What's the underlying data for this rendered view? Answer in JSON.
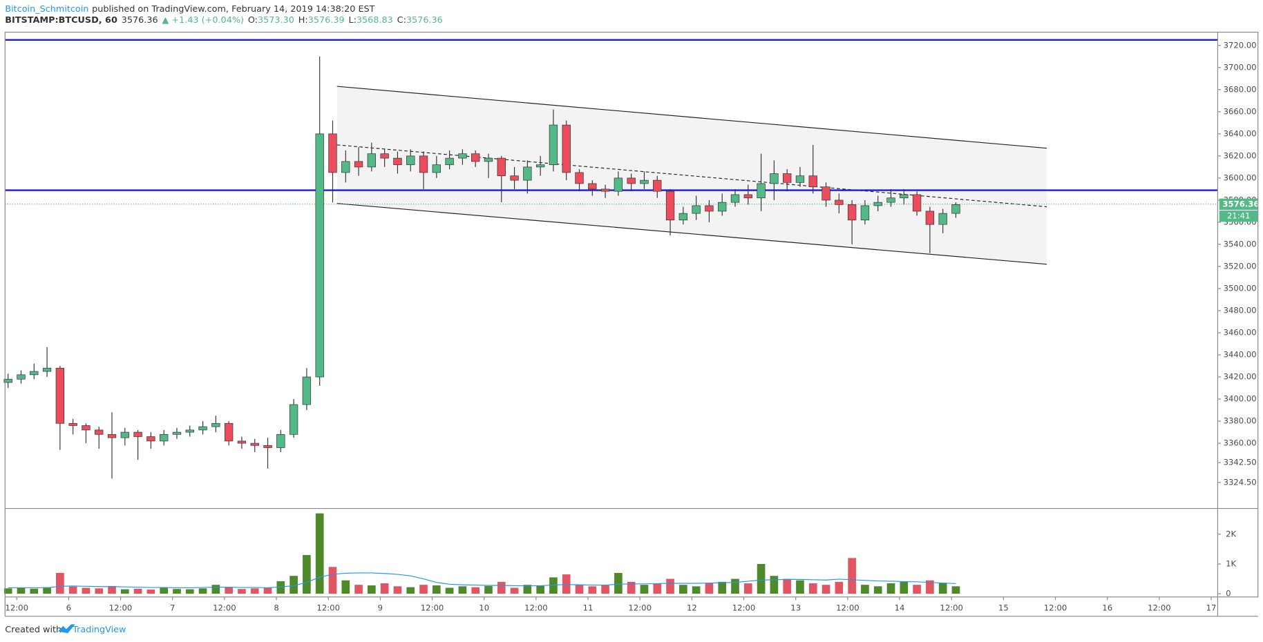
{
  "header": {
    "author": "Bitcoin_Schmitcoin",
    "published": "published on TradingView.com, February 14, 2019 14:38:20 EST",
    "symbol": "BITSTAMP:BTCUSD, 60",
    "last": "3576.36",
    "change": "▲ +1.43 (+0.04%)",
    "ohlc": [
      {
        "label": "O:",
        "value": "3573.30"
      },
      {
        "label": "H:",
        "value": "3576.39"
      },
      {
        "label": "L:",
        "value": "3568.83"
      },
      {
        "label": "C:",
        "value": "3576.36"
      }
    ]
  },
  "chart_data": [
    {
      "type": "candlestick",
      "up_color": "#53b987",
      "down_color": "#eb4d5c",
      "x": [
        -14,
        -11,
        -8,
        -5,
        -2,
        1,
        4,
        7,
        10,
        13,
        16,
        19,
        22,
        25,
        28,
        31,
        34,
        37,
        40,
        43,
        46,
        49,
        52,
        55,
        58,
        61,
        64,
        67,
        70,
        73,
        76,
        79,
        82,
        85,
        88,
        91,
        94,
        97,
        100,
        103,
        106,
        109,
        112,
        115,
        118,
        121,
        124,
        127,
        130,
        133,
        136,
        139,
        142,
        145,
        148,
        151,
        154,
        157,
        160,
        163,
        166,
        169,
        172,
        175,
        178,
        181,
        184,
        187,
        190,
        193,
        196,
        199,
        202,
        205
      ],
      "open": [
        3415,
        3418,
        3422,
        3425,
        3428,
        3378,
        3376,
        3372,
        3368,
        3365,
        3370,
        3366,
        3362,
        3368,
        3370,
        3372,
        3375,
        3378,
        3362,
        3360,
        3358,
        3356,
        3368,
        3395,
        3420,
        3640,
        3605,
        3615,
        3610,
        3622,
        3618,
        3612,
        3620,
        3605,
        3612,
        3618,
        3622,
        3615,
        3618,
        3602,
        3598,
        3610,
        3612,
        3648,
        3605,
        3595,
        3590,
        3588,
        3600,
        3595,
        3598,
        3588,
        3562,
        3568,
        3575,
        3570,
        3578,
        3585,
        3582,
        3595,
        3604,
        3596,
        3602,
        3592,
        3580,
        3576,
        3562,
        3575,
        3578,
        3582,
        3585,
        3570,
        3558,
        3568
      ],
      "high": [
        3423,
        3426,
        3432,
        3447,
        3430,
        3382,
        3378,
        3375,
        3388,
        3374,
        3372,
        3370,
        3372,
        3374,
        3376,
        3380,
        3385,
        3380,
        3366,
        3364,
        3365,
        3372,
        3400,
        3428,
        3710,
        3652,
        3625,
        3628,
        3632,
        3626,
        3624,
        3626,
        3624,
        3620,
        3625,
        3626,
        3625,
        3622,
        3620,
        3610,
        3616,
        3620,
        3662,
        3652,
        3608,
        3598,
        3594,
        3606,
        3604,
        3606,
        3602,
        3590,
        3574,
        3584,
        3580,
        3586,
        3590,
        3594,
        3622,
        3616,
        3608,
        3610,
        3630,
        3596,
        3586,
        3580,
        3580,
        3584,
        3590,
        3590,
        3588,
        3574,
        3572,
        3578
      ],
      "low": [
        3410,
        3414,
        3418,
        3420,
        3354,
        3368,
        3360,
        3355,
        3328,
        3358,
        3345,
        3355,
        3358,
        3364,
        3366,
        3368,
        3370,
        3358,
        3355,
        3352,
        3337,
        3352,
        3365,
        3390,
        3412,
        3578,
        3596,
        3602,
        3606,
        3610,
        3604,
        3606,
        3590,
        3600,
        3608,
        3612,
        3610,
        3600,
        3578,
        3590,
        3586,
        3602,
        3606,
        3598,
        3588,
        3584,
        3582,
        3584,
        3588,
        3590,
        3582,
        3548,
        3558,
        3562,
        3560,
        3566,
        3574,
        3576,
        3570,
        3580,
        3588,
        3592,
        3586,
        3574,
        3568,
        3540,
        3558,
        3570,
        3574,
        3576,
        3566,
        3532,
        3550,
        3564
      ],
      "close": [
        3418,
        3422,
        3425,
        3428,
        3378,
        3376,
        3372,
        3368,
        3365,
        3370,
        3366,
        3362,
        3368,
        3370,
        3372,
        3375,
        3378,
        3362,
        3360,
        3358,
        3356,
        3368,
        3395,
        3420,
        3640,
        3605,
        3615,
        3610,
        3622,
        3618,
        3612,
        3620,
        3605,
        3612,
        3618,
        3622,
        3615,
        3618,
        3602,
        3598,
        3610,
        3612,
        3648,
        3605,
        3595,
        3590,
        3588,
        3600,
        3595,
        3598,
        3588,
        3562,
        3568,
        3575,
        3570,
        3578,
        3585,
        3582,
        3595,
        3604,
        3596,
        3602,
        3592,
        3580,
        3576,
        3562,
        3575,
        3578,
        3582,
        3585,
        3570,
        3558,
        3568,
        3576
      ],
      "xlim": [
        -14.7,
        265.5
      ],
      "xticks": [
        {
          "value": -12,
          "label": "12:00"
        },
        {
          "value": 0,
          "label": "6"
        },
        {
          "value": 12,
          "label": "12:00"
        },
        {
          "value": 24,
          "label": "7"
        },
        {
          "value": 36,
          "label": "12:00"
        },
        {
          "value": 48,
          "label": "8"
        },
        {
          "value": 60,
          "label": "12:00"
        },
        {
          "value": 72,
          "label": "9"
        },
        {
          "value": 84,
          "label": "12:00"
        },
        {
          "value": 96,
          "label": "10"
        },
        {
          "value": 108,
          "label": "12:00"
        },
        {
          "value": 120,
          "label": "11"
        },
        {
          "value": 132,
          "label": "12:00"
        },
        {
          "value": 144,
          "label": "12"
        },
        {
          "value": 156,
          "label": "12:00"
        },
        {
          "value": 168,
          "label": "13"
        },
        {
          "value": 180,
          "label": "12:00"
        },
        {
          "value": 192,
          "label": "14"
        },
        {
          "value": 204,
          "label": "12:00"
        },
        {
          "value": 216,
          "label": "15"
        },
        {
          "value": 228,
          "label": "12:00"
        },
        {
          "value": 240,
          "label": "16"
        },
        {
          "value": 252,
          "label": "12:00"
        },
        {
          "value": 264,
          "label": "17"
        }
      ],
      "ylim": [
        3301,
        3732
      ],
      "yticks": [
        {
          "value": 3720,
          "label": "3720.00"
        },
        {
          "value": 3700,
          "label": "3700.00"
        },
        {
          "value": 3680,
          "label": "3680.00"
        },
        {
          "value": 3660,
          "label": "3660.00"
        },
        {
          "value": 3640,
          "label": "3640.00"
        },
        {
          "value": 3620,
          "label": "3620.00"
        },
        {
          "value": 3600,
          "label": "3600.00"
        },
        {
          "value": 3580,
          "label": "3580.00"
        },
        {
          "value": 3560,
          "label": "3560.00"
        },
        {
          "value": 3540,
          "label": "3540.00"
        },
        {
          "value": 3520,
          "label": "3520.00"
        },
        {
          "value": 3500,
          "label": "3500.00"
        },
        {
          "value": 3480,
          "label": "3480.00"
        },
        {
          "value": 3460,
          "label": "3460.00"
        },
        {
          "value": 3440,
          "label": "3440.00"
        },
        {
          "value": 3420,
          "label": "3420.00"
        },
        {
          "value": 3400,
          "label": "3400.00"
        },
        {
          "value": 3380,
          "label": "3380.00"
        },
        {
          "value": 3360,
          "label": "3360.00"
        },
        {
          "value": 3342.5,
          "label": "3342.50"
        },
        {
          "value": 3324.5,
          "label": "3324.50"
        }
      ],
      "price_lines": [
        {
          "value": 3725,
          "color": "#1c1ccf"
        },
        {
          "value": 3589,
          "color": "#1c1ccf"
        }
      ],
      "last_price": 3576.36,
      "countdown": "21:41",
      "last_color": "#53b987",
      "channel": {
        "x": [
          62,
          226
        ],
        "upper": [
          3683,
          3627
        ],
        "lower": [
          3577,
          3522
        ],
        "mid": [
          3630,
          3574
        ]
      }
    },
    {
      "type": "bar",
      "up_color": "#4e8a2a",
      "down_color": "#e25563",
      "ma_color": "#2196f3",
      "x": [
        -14,
        -11,
        -8,
        -5,
        -2,
        1,
        4,
        7,
        10,
        13,
        16,
        19,
        22,
        25,
        28,
        31,
        34,
        37,
        40,
        43,
        46,
        49,
        52,
        55,
        58,
        61,
        64,
        67,
        70,
        73,
        76,
        79,
        82,
        85,
        88,
        91,
        94,
        97,
        100,
        103,
        106,
        109,
        112,
        115,
        118,
        121,
        124,
        127,
        130,
        133,
        136,
        139,
        142,
        145,
        148,
        151,
        154,
        157,
        160,
        163,
        166,
        169,
        172,
        175,
        178,
        181,
        184,
        187,
        190,
        193,
        196,
        199,
        202,
        205
      ],
      "values": [
        180,
        200,
        170,
        220,
        700,
        240,
        200,
        180,
        260,
        150,
        170,
        140,
        200,
        160,
        150,
        180,
        300,
        220,
        160,
        180,
        200,
        420,
        600,
        1300,
        2700,
        900,
        450,
        300,
        280,
        350,
        250,
        220,
        300,
        280,
        200,
        250,
        220,
        260,
        400,
        200,
        300,
        280,
        550,
        650,
        300,
        250,
        280,
        700,
        400,
        300,
        350,
        500,
        300,
        250,
        350,
        400,
        500,
        350,
        1000,
        600,
        500,
        450,
        350,
        300,
        400,
        1200,
        300,
        250,
        350,
        400,
        300,
        450,
        350,
        250
      ],
      "ma": [
        200,
        200,
        200,
        200,
        250,
        260,
        250,
        240,
        240,
        230,
        220,
        210,
        210,
        200,
        200,
        210,
        220,
        220,
        210,
        210,
        200,
        230,
        270,
        380,
        560,
        650,
        690,
        700,
        700,
        680,
        650,
        600,
        500,
        380,
        320,
        300,
        290,
        280,
        280,
        270,
        270,
        270,
        290,
        310,
        300,
        290,
        290,
        320,
        330,
        330,
        340,
        350,
        350,
        350,
        360,
        370,
        380,
        420,
        460,
        470,
        480,
        480,
        470,
        460,
        490,
        470,
        450,
        430,
        420,
        410,
        400,
        380,
        360,
        340
      ],
      "ylim": [
        -108,
        2865
      ],
      "yticks": [
        {
          "value": 2000,
          "label": "2K"
        },
        {
          "value": 1000,
          "label": "1K"
        },
        0
      ]
    }
  ],
  "footer": {
    "created": "Created with",
    "brand": "TradingView"
  }
}
